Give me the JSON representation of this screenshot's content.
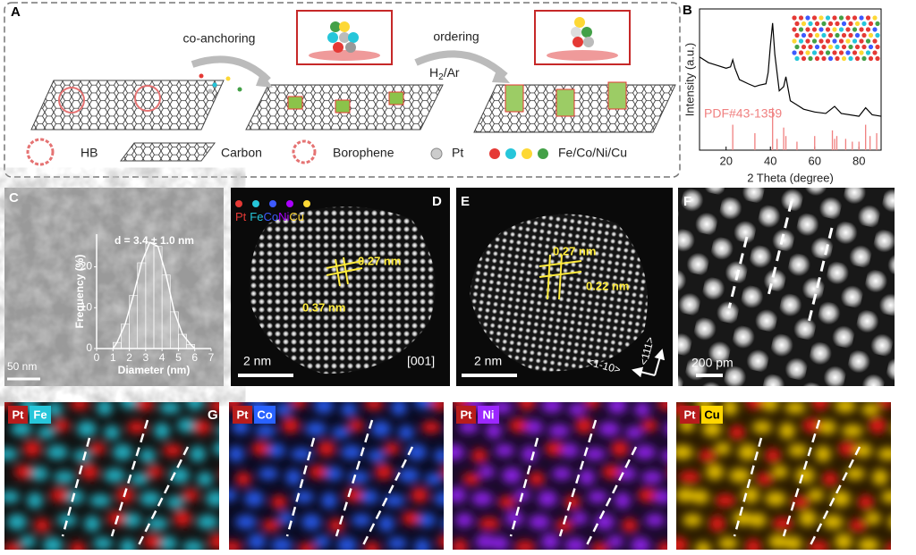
{
  "panel_labels": [
    "A",
    "B",
    "C",
    "D",
    "E",
    "F",
    "G"
  ],
  "panel_a": {
    "steps": [
      "co-anchoring",
      "ordering"
    ],
    "gas": [
      "H",
      "2",
      "/Ar"
    ],
    "legend": [
      "HB",
      "Carbon",
      "Borophene",
      "Pt",
      "Fe/Co/Ni/Cu"
    ]
  },
  "chart_data": [
    {
      "type": "line",
      "x_label": "2 Theta (degree)",
      "y_label": "Intensity (a.u.)",
      "color": "#000000",
      "x": [
        8,
        12,
        16,
        20,
        22,
        23,
        24,
        26,
        30,
        33,
        35,
        38,
        39,
        40,
        41,
        42,
        44,
        46,
        47,
        49,
        55,
        60,
        65,
        69,
        72,
        80,
        83,
        86,
        90
      ],
      "values": [
        66,
        62,
        60,
        58,
        59,
        64,
        58,
        50,
        47,
        45,
        46,
        47,
        55,
        74,
        90,
        68,
        42,
        45,
        52,
        35,
        29,
        27,
        26,
        31,
        26,
        24,
        30,
        25,
        24
      ],
      "xlim": [
        8,
        90
      ],
      "ylim": [
        0,
        100
      ],
      "xticks": [
        20,
        40,
        60,
        80
      ],
      "reference": {
        "name": "PDF#43-1359",
        "color": "#f08080",
        "x": [
          23,
          33,
          41,
          43,
          46,
          47,
          52,
          60,
          68,
          69,
          70,
          74,
          77,
          80,
          83,
          85,
          88
        ],
        "values": [
          18,
          12,
          30,
          8,
          16,
          10,
          6,
          10,
          14,
          8,
          10,
          8,
          6,
          6,
          18,
          10,
          12
        ]
      }
    },
    {
      "type": "histogram",
      "x_label": "Diameter (nm)",
      "y_label": "Frequency (%)",
      "annotation": "d = 3.4 ± 1.0 nm",
      "bins": [
        1,
        1.5,
        2,
        2.5,
        3,
        3.5,
        4,
        4.5,
        5,
        5.5,
        6
      ],
      "values": [
        1.5,
        6,
        13,
        21,
        26,
        25,
        18,
        9,
        3.5,
        1
      ],
      "xlim": [
        0,
        7
      ],
      "ylim": [
        0,
        28
      ],
      "xticks": [
        0,
        1,
        2,
        3,
        4,
        5,
        6,
        7
      ],
      "yticks": [
        0,
        10,
        20
      ]
    }
  ],
  "panel_c": {
    "scale": "50 nm"
  },
  "panel_d": {
    "legend": [
      "Pt",
      "Fe",
      "Co",
      "Ni",
      "Cu"
    ],
    "spacings": [
      "0.27 nm",
      "0.37 nm"
    ],
    "scale": "2 nm",
    "zone": "[001]"
  },
  "panel_e": {
    "spacings": [
      "0.27 nm",
      "0.22 nm"
    ],
    "scale": "2 nm",
    "directions": [
      "<111>",
      "<1-10>"
    ]
  },
  "panel_f": {
    "scale": "200 pm"
  },
  "panel_g": {
    "maps": [
      [
        "Pt",
        "Fe"
      ],
      [
        "Pt",
        "Co"
      ],
      [
        "Pt",
        "Ni"
      ],
      [
        "Pt",
        "Cu"
      ]
    ]
  }
}
